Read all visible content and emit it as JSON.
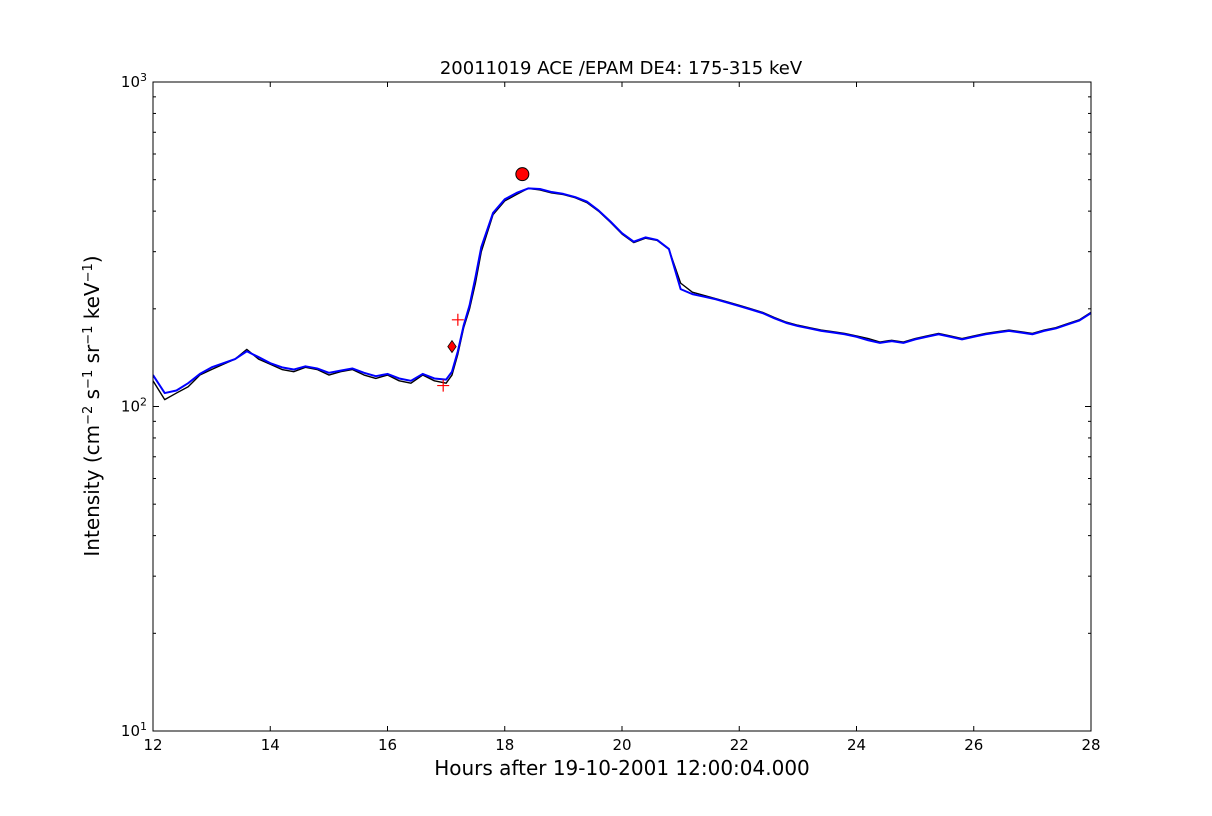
{
  "chart_data": {
    "type": "line",
    "title": "20011019 ACE /EPAM DE4: 175-315 keV",
    "xlabel": "Hours after 19-10-2001 12:00:04.000",
    "ylabel": {
      "prefix": "Intensity (cm",
      "exp1": "−2",
      "mid1": " s",
      "exp2": "−1",
      "mid2": " sr",
      "exp3": "−1",
      "mid3": " keV",
      "exp4": "−1",
      "suffix": ")"
    },
    "xlim": [
      12,
      28
    ],
    "ylim": [
      10,
      1000
    ],
    "yscale": "log",
    "grid": false,
    "x_ticks": [
      12,
      14,
      16,
      18,
      20,
      22,
      24,
      26,
      28
    ],
    "x_tick_labels": [
      "12",
      "14",
      "16",
      "18",
      "20",
      "22",
      "24",
      "26",
      "28"
    ],
    "y_ticks": [
      10,
      100,
      1000
    ],
    "y_tick_labels": [
      {
        "base": "10",
        "exp": "1"
      },
      {
        "base": "10",
        "exp": "2"
      },
      {
        "base": "10",
        "exp": "3"
      }
    ],
    "series": [
      {
        "role": "raw",
        "color": "#000000",
        "x": [
          12.0,
          12.2,
          12.4,
          12.6,
          12.8,
          13.0,
          13.2,
          13.4,
          13.6,
          13.8,
          14.0,
          14.2,
          14.4,
          14.6,
          14.8,
          15.0,
          15.2,
          15.4,
          15.6,
          15.8,
          16.0,
          16.2,
          16.4,
          16.6,
          16.8,
          17.0,
          17.1,
          17.2,
          17.3,
          17.4,
          17.5,
          17.6,
          17.8,
          18.0,
          18.2,
          18.4,
          18.6,
          18.8,
          19.0,
          19.2,
          19.4,
          19.6,
          19.8,
          20.0,
          20.2,
          20.4,
          20.6,
          20.8,
          21.0,
          21.2,
          21.4,
          21.6,
          21.8,
          22.0,
          22.2,
          22.4,
          22.6,
          22.8,
          23.0,
          23.2,
          23.4,
          23.6,
          23.8,
          24.0,
          24.2,
          24.4,
          24.6,
          24.8,
          25.0,
          25.2,
          25.4,
          25.6,
          25.8,
          26.0,
          26.2,
          26.4,
          26.6,
          26.8,
          27.0,
          27.2,
          27.4,
          27.6,
          27.8,
          28.0
        ],
        "y": [
          120,
          105,
          110,
          115,
          125,
          130,
          135,
          140,
          150,
          140,
          135,
          130,
          128,
          132,
          130,
          125,
          128,
          130,
          125,
          122,
          125,
          120,
          118,
          125,
          120,
          118,
          125,
          145,
          175,
          200,
          240,
          300,
          390,
          430,
          450,
          470,
          465,
          455,
          450,
          440,
          425,
          400,
          370,
          340,
          320,
          330,
          325,
          305,
          240,
          225,
          220,
          215,
          210,
          205,
          200,
          195,
          188,
          182,
          178,
          175,
          172,
          170,
          168,
          165,
          162,
          158,
          160,
          158,
          162,
          165,
          168,
          165,
          162,
          165,
          168,
          170,
          172,
          170,
          168,
          172,
          175,
          180,
          185,
          195
        ]
      },
      {
        "role": "smoothed",
        "color": "#0000ff",
        "x": [
          12.0,
          12.2,
          12.4,
          12.6,
          12.8,
          13.0,
          13.2,
          13.4,
          13.6,
          13.8,
          14.0,
          14.2,
          14.4,
          14.6,
          14.8,
          15.0,
          15.2,
          15.4,
          15.6,
          15.8,
          16.0,
          16.2,
          16.4,
          16.6,
          16.8,
          17.0,
          17.1,
          17.2,
          17.3,
          17.4,
          17.5,
          17.6,
          17.8,
          18.0,
          18.2,
          18.4,
          18.6,
          18.8,
          19.0,
          19.2,
          19.4,
          19.6,
          19.8,
          20.0,
          20.2,
          20.4,
          20.6,
          20.8,
          21.0,
          21.2,
          21.4,
          21.6,
          21.8,
          22.0,
          22.2,
          22.4,
          22.6,
          22.8,
          23.0,
          23.2,
          23.4,
          23.6,
          23.8,
          24.0,
          24.2,
          24.4,
          24.6,
          24.8,
          25.0,
          25.2,
          25.4,
          25.6,
          25.8,
          26.0,
          26.2,
          26.4,
          26.6,
          26.8,
          27.0,
          27.2,
          27.4,
          27.6,
          27.8,
          28.0
        ],
        "y": [
          125,
          110,
          112,
          118,
          126,
          132,
          136,
          140,
          148,
          142,
          136,
          132,
          130,
          133,
          131,
          127,
          129,
          131,
          127,
          124,
          126,
          122,
          120,
          126,
          122,
          121,
          128,
          148,
          178,
          205,
          250,
          310,
          395,
          435,
          455,
          470,
          468,
          458,
          452,
          442,
          428,
          402,
          372,
          342,
          322,
          332,
          326,
          306,
          230,
          222,
          218,
          214,
          209,
          204,
          199,
          194,
          187,
          181,
          177,
          174,
          171,
          169,
          167,
          164,
          160,
          157,
          159,
          157,
          161,
          164,
          167,
          164,
          161,
          164,
          167,
          169,
          171,
          169,
          167,
          171,
          174,
          179,
          184,
          194
        ]
      }
    ],
    "markers": [
      {
        "shape": "circle",
        "x": 18.3,
        "y": 520,
        "color": "#ff0000"
      },
      {
        "shape": "diamond",
        "x": 17.1,
        "y": 153,
        "color": "#ff0000"
      },
      {
        "shape": "plus",
        "x": 16.95,
        "y": 116,
        "color": "#ff0000"
      },
      {
        "shape": "plus",
        "x": 17.2,
        "y": 185,
        "color": "#ff0000"
      }
    ]
  }
}
